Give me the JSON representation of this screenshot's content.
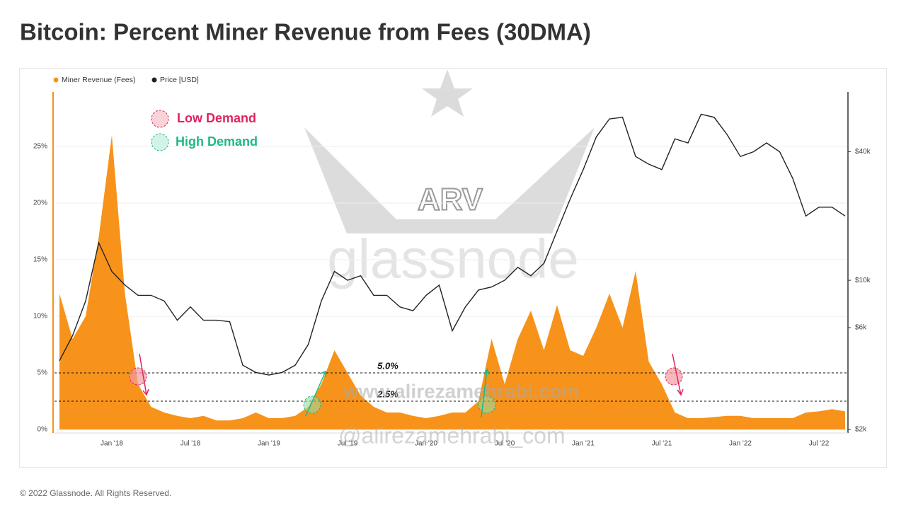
{
  "chart_data": {
    "type": "area-line",
    "title": "Bitcoin: Percent Miner Revenue from Fees (30DMA)",
    "footer": "© 2022 Glassnode. All Rights Reserved.",
    "categories": [
      null,
      null,
      null,
      null,
      "Jan '18",
      null,
      null,
      null,
      null,
      null,
      "Jul '18",
      null,
      null,
      null,
      null,
      null,
      "Jan '19",
      null,
      null,
      null,
      null,
      null,
      "Jul '19",
      null,
      null,
      null,
      null,
      null,
      "Jan '20",
      null,
      null,
      null,
      null,
      null,
      "Jul '20",
      null,
      null,
      null,
      null,
      null,
      "Jan '21",
      null,
      null,
      null,
      null,
      null,
      "Jul '21",
      null,
      null,
      null,
      null,
      null,
      "Jan '22",
      null,
      null,
      null,
      null,
      null,
      "Jul '22",
      null,
      null
    ],
    "series": [
      {
        "name": "Miner Revenue (Fees)",
        "color": "#f7931a",
        "axis": "y",
        "values": [
          12,
          8,
          10,
          17,
          26,
          12,
          4,
          2,
          1.5,
          1.2,
          1,
          1.2,
          0.8,
          0.8,
          1,
          1.5,
          1,
          1,
          1.2,
          2,
          4,
          7,
          5,
          3,
          2,
          1.5,
          1.5,
          1.2,
          1,
          1.2,
          1.5,
          1.5,
          2.5,
          8,
          4,
          8,
          10.5,
          7,
          11,
          7,
          6.5,
          9,
          12,
          9,
          14,
          6,
          4,
          1.5,
          1,
          1,
          1.1,
          1.2,
          1.2,
          1,
          1,
          1,
          1,
          1.5,
          1.6,
          1.8,
          1.6
        ]
      },
      {
        "name": "Price [USD]",
        "color": "#222222",
        "axis": "y2",
        "values": [
          4200,
          5500,
          8000,
          15000,
          11000,
          9500,
          8500,
          8500,
          8000,
          6500,
          7500,
          6500,
          6500,
          6400,
          4000,
          3700,
          3600,
          3700,
          4000,
          5000,
          8000,
          11000,
          10000,
          10500,
          8500,
          8500,
          7500,
          7200,
          8500,
          9500,
          5800,
          7500,
          9000,
          9300,
          10000,
          11500,
          10500,
          12000,
          17000,
          24000,
          33000,
          47000,
          57000,
          58000,
          38000,
          35000,
          33000,
          46000,
          44000,
          60000,
          58000,
          48000,
          38000,
          40000,
          44000,
          40000,
          30000,
          20000,
          22000,
          22000,
          20000
        ]
      }
    ],
    "ylim": [
      0,
      30
    ],
    "yticks": [
      {
        "value": 0,
        "label": "0%"
      },
      {
        "value": 5,
        "label": "5%"
      },
      {
        "value": 10,
        "label": "10%"
      },
      {
        "value": 15,
        "label": "15%"
      },
      {
        "value": 20,
        "label": "20%"
      },
      {
        "value": 25,
        "label": "25%"
      }
    ],
    "y2lim": [
      2000,
      78000
    ],
    "y2log": true,
    "y2ticks": [
      {
        "value": 2000,
        "label": "$2k"
      },
      {
        "value": 6000,
        "label": "$6k"
      },
      {
        "value": 10000,
        "label": "$10k"
      },
      {
        "value": 40000,
        "label": "$40k"
      }
    ],
    "hlines": [
      {
        "value": 5,
        "label": "5.0%"
      },
      {
        "value": 2.5,
        "label": "2.5%"
      }
    ],
    "grid": true,
    "annotations": [
      "Low Demand",
      "High Demand"
    ],
    "watermarks": [
      "glassnode",
      "ARV",
      "www.alirezamehrabi.com",
      "@alirezamehrabi_com"
    ]
  }
}
